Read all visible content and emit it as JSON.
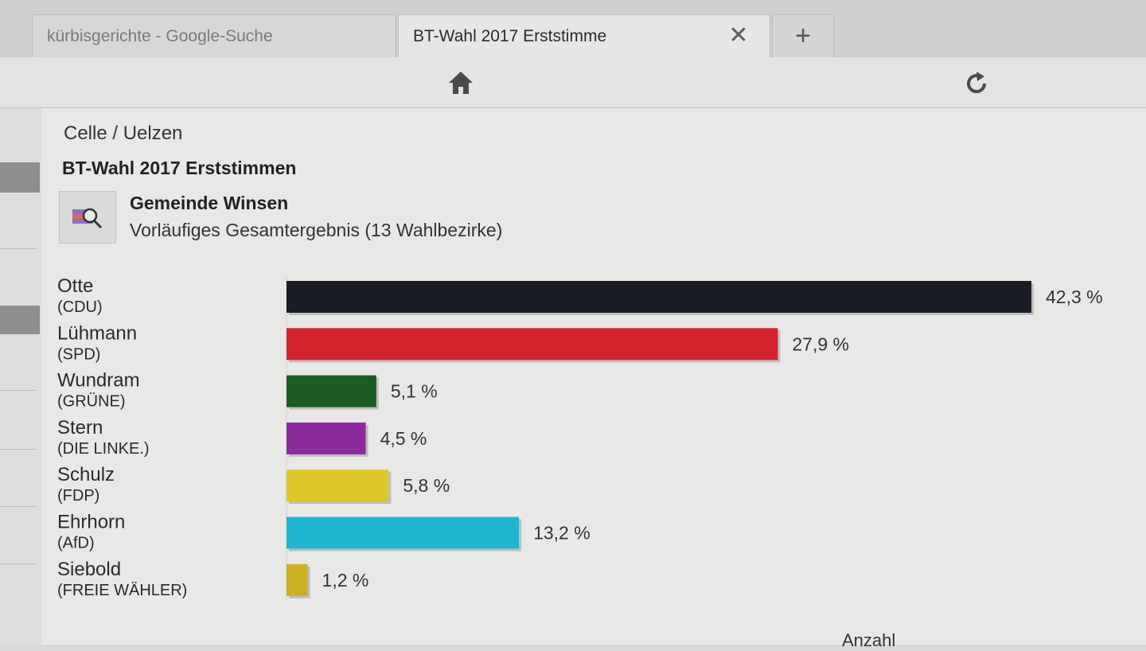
{
  "browser": {
    "tabs": [
      {
        "label": "kürbisgerichte - Google-Suche",
        "active": false
      },
      {
        "label": "BT-Wahl 2017 Erststimme",
        "active": true
      }
    ],
    "close_symbol": "✕",
    "new_tab_symbol": "+",
    "toolbar_icons": [
      "home-icon",
      "reload-icon"
    ]
  },
  "page": {
    "breadcrumb": "Celle / Uelzen",
    "title": "BT-Wahl 2017 Erststimmen",
    "region_name": "Gemeinde Winsen",
    "region_subtitle": "Vorläufiges Gesamtergebnis (13 Wahlbezirke)",
    "footer_label": "Anzahl"
  },
  "chart_data": {
    "type": "bar",
    "orientation": "horizontal",
    "xlim": [
      0,
      42.3
    ],
    "categories": [
      {
        "name": "Otte",
        "party": "(CDU)"
      },
      {
        "name": "Lühmann",
        "party": "(SPD)"
      },
      {
        "name": "Wundram",
        "party": "(GRÜNE)"
      },
      {
        "name": "Stern",
        "party": "(DIE LINKE.)"
      },
      {
        "name": "Schulz",
        "party": "(FDP)"
      },
      {
        "name": "Ehrhorn",
        "party": "(AfD)"
      },
      {
        "name": "Siebold",
        "party": "(FREIE WÄHLER)"
      }
    ],
    "values": [
      42.3,
      27.9,
      5.1,
      4.5,
      5.8,
      13.2,
      1.2
    ],
    "value_labels": [
      "42,3 %",
      "27,9 %",
      "5,1 %",
      "4,5 %",
      "5,8 %",
      "13,2 %",
      "1,2 %"
    ],
    "colors": [
      "#1a1d24",
      "#d4232e",
      "#1b5c22",
      "#8a2a9c",
      "#ddc82a",
      "#1eb7cf",
      "#cdb022"
    ]
  }
}
